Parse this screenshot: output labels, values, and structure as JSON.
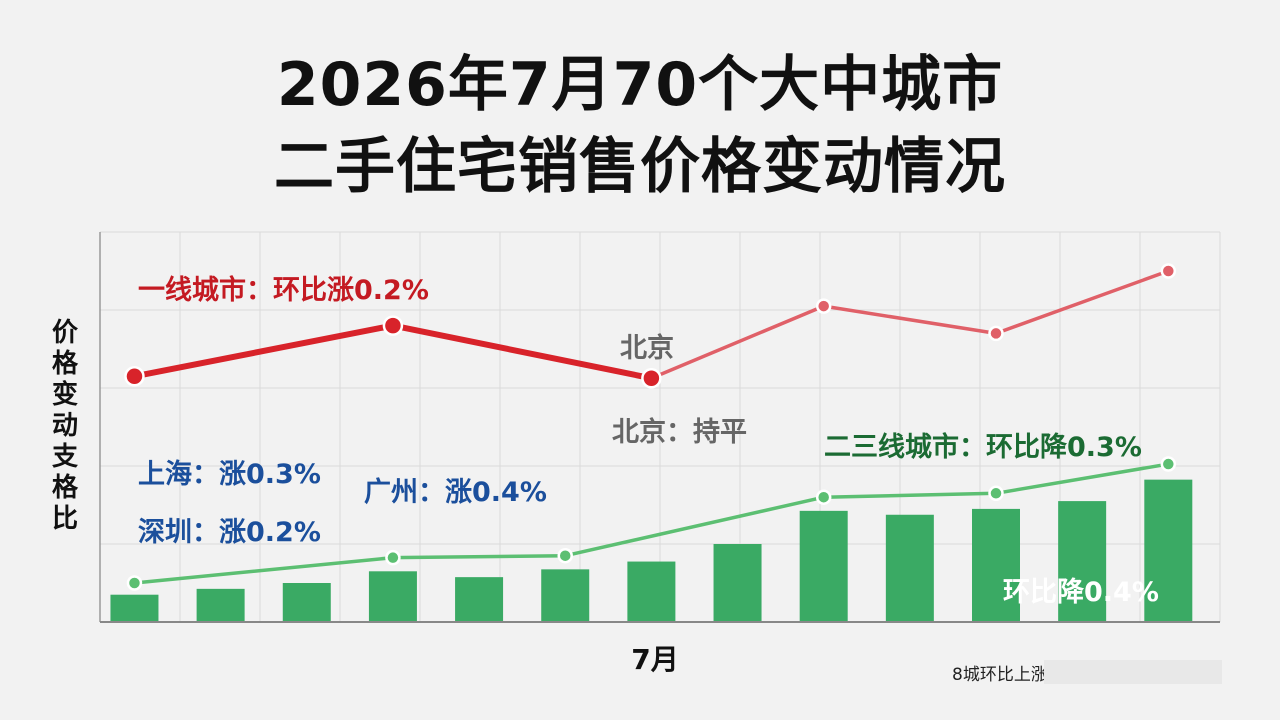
{
  "title": {
    "line1": "2026年7月70个大中城市",
    "line2": "二手住宅销售价格变动情况"
  },
  "axes": {
    "ylabel": "价格变动支格比",
    "xlabel": "7月"
  },
  "annotations": {
    "tier1": "一线城市：环比涨0.2%",
    "beijing_point": "北京",
    "beijing": "北京：持平",
    "shanghai": "上海：涨0.3%",
    "shenzhen": "深圳：涨0.2%",
    "guangzhou": "广州：涨0.4%",
    "tier23": "二三线城市：环比降0.3%",
    "bar_label": "环比降0.4%"
  },
  "source_text": "8城环比上涨",
  "colors": {
    "red": "#d8232a",
    "red_light": "#e06068",
    "green_line": "#5cbf72",
    "green_bar": "#3aaa64",
    "blue_text": "#1b4f9c",
    "background": "#f2f2f2"
  },
  "chart_data": {
    "type": "bar+line",
    "grid": true,
    "n_points": 13,
    "x": [
      1,
      2,
      3,
      4,
      5,
      6,
      7,
      8,
      9,
      10,
      11,
      12,
      13
    ],
    "xlim": [
      0.6,
      13.6
    ],
    "ylim": [
      0,
      100
    ],
    "series": [
      {
        "kind": "line",
        "x": [
          1,
          4,
          7,
          9,
          11,
          13
        ],
        "values": [
          63,
          76,
          62.5,
          81,
          74,
          90
        ]
      },
      {
        "kind": "line",
        "x": [
          1,
          4,
          6,
          9,
          11,
          13
        ],
        "values": [
          10,
          16.5,
          17,
          32,
          33,
          40.5
        ]
      },
      {
        "kind": "bar",
        "values": [
          7,
          8.5,
          10,
          13,
          11.5,
          13.5,
          15.5,
          20,
          28.5,
          27.5,
          29,
          31,
          36.5
        ]
      }
    ]
  }
}
